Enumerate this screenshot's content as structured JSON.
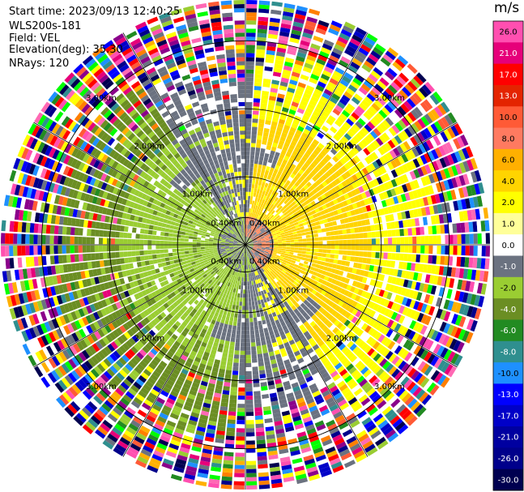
{
  "header": {
    "start_time": "Start time: 2023/09/13 12:40:25",
    "station": "WLS200s-181",
    "field": "Field: VEL",
    "elevation": "Elevation(deg): 35.30",
    "nrays": "NRays: 120"
  },
  "chart_data": {
    "type": "heatmap",
    "subtype": "ppi-polar",
    "nrays": 120,
    "range_rings_km": [
      0.4,
      1.0,
      2.0,
      3.0
    ],
    "ring_labels": [
      "1.00km",
      "2.00km",
      "3.00km"
    ],
    "inner_ring_label": "0.40km",
    "colorbar": {
      "unit": "m/s",
      "ticks": [
        "26.0",
        "21.0",
        "17.0",
        "13.0",
        "10.0",
        "8.0",
        "6.0",
        "4.0",
        "2.0",
        "1.0",
        "0.0",
        "-1.0",
        "-2.0",
        "-4.0",
        "-6.0",
        "-8.0",
        "-10.0",
        "-13.0",
        "-17.0",
        "-21.0",
        "-26.0",
        "-30.0"
      ],
      "colors": [
        "#ff4fb0",
        "#e6007a",
        "#ff0000",
        "#e42400",
        "#ff5a36",
        "#ff7a60",
        "#ffb000",
        "#ffd400",
        "#ffff00",
        "#ffff99",
        "#ffffff",
        "#6b7280",
        "#9acd32",
        "#6b8e23",
        "#228b22",
        "#2f8f8f",
        "#1e90ff",
        "#0000ff",
        "#0000c8",
        "#0000a0",
        "#00008b",
        "#000050"
      ]
    }
  }
}
